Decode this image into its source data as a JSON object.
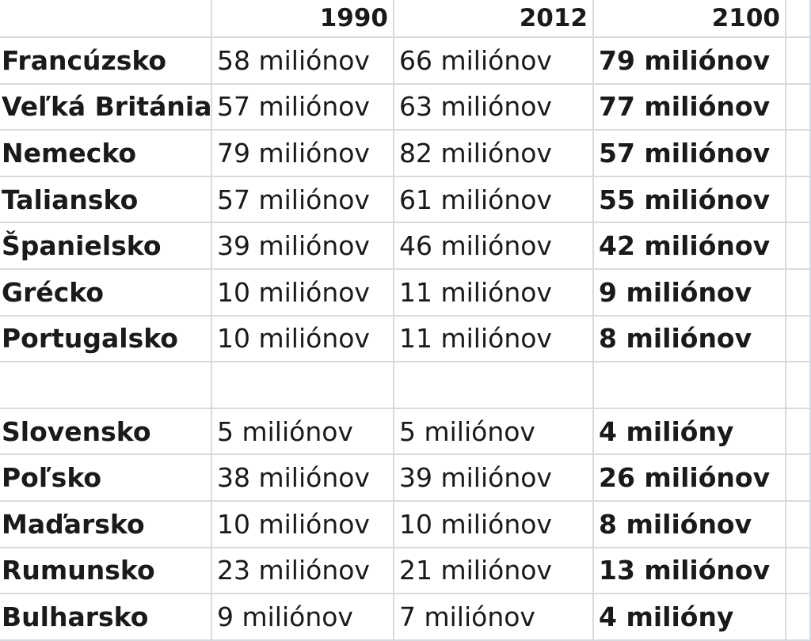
{
  "header": {
    "col1": "1990",
    "col2": "2012",
    "col3": "2100"
  },
  "rows": [
    {
      "country": "Francúzsko",
      "y1990": "58 miliónov",
      "y2012": "66 miliónov",
      "y2100": "79 miliónov"
    },
    {
      "country": "Veľká Británia",
      "y1990": "57 miliónov",
      "y2012": "63 miliónov",
      "y2100": "77 miliónov"
    },
    {
      "country": "Nemecko",
      "y1990": "79 miliónov",
      "y2012": "82 miliónov",
      "y2100": "57 miliónov"
    },
    {
      "country": "Taliansko",
      "y1990": "57 miliónov",
      "y2012": "61 miliónov",
      "y2100": "55 miliónov"
    },
    {
      "country": "Španielsko",
      "y1990": "39 miliónov",
      "y2012": "46 miliónov",
      "y2100": "42 miliónov"
    },
    {
      "country": "Grécko",
      "y1990": "10 miliónov",
      "y2012": "11 miliónov",
      "y2100": "9 miliónov"
    },
    {
      "country": "Portugalsko",
      "y1990": "10 miliónov",
      "y2012": "11 miliónov",
      "y2100": "8 miliónov"
    },
    {
      "country": "",
      "y1990": "",
      "y2012": "",
      "y2100": ""
    },
    {
      "country": "Slovensko",
      "y1990": "5 miliónov",
      "y2012": "5 miliónov",
      "y2100": "4 milióny"
    },
    {
      "country": "Poľsko",
      "y1990": "38 miliónov",
      "y2012": "39 miliónov",
      "y2100": "26 miliónov"
    },
    {
      "country": "Maďarsko",
      "y1990": "10 miliónov",
      "y2012": "10 miliónov",
      "y2100": "8 miliónov"
    },
    {
      "country": "Rumunsko",
      "y1990": "23 miliónov",
      "y2012": "21 miliónov",
      "y2100": "13 miliónov"
    },
    {
      "country": "Bulharsko",
      "y1990": "9 miliónov",
      "y2012": "7 miliónov",
      "y2100": "4 milióny"
    }
  ]
}
